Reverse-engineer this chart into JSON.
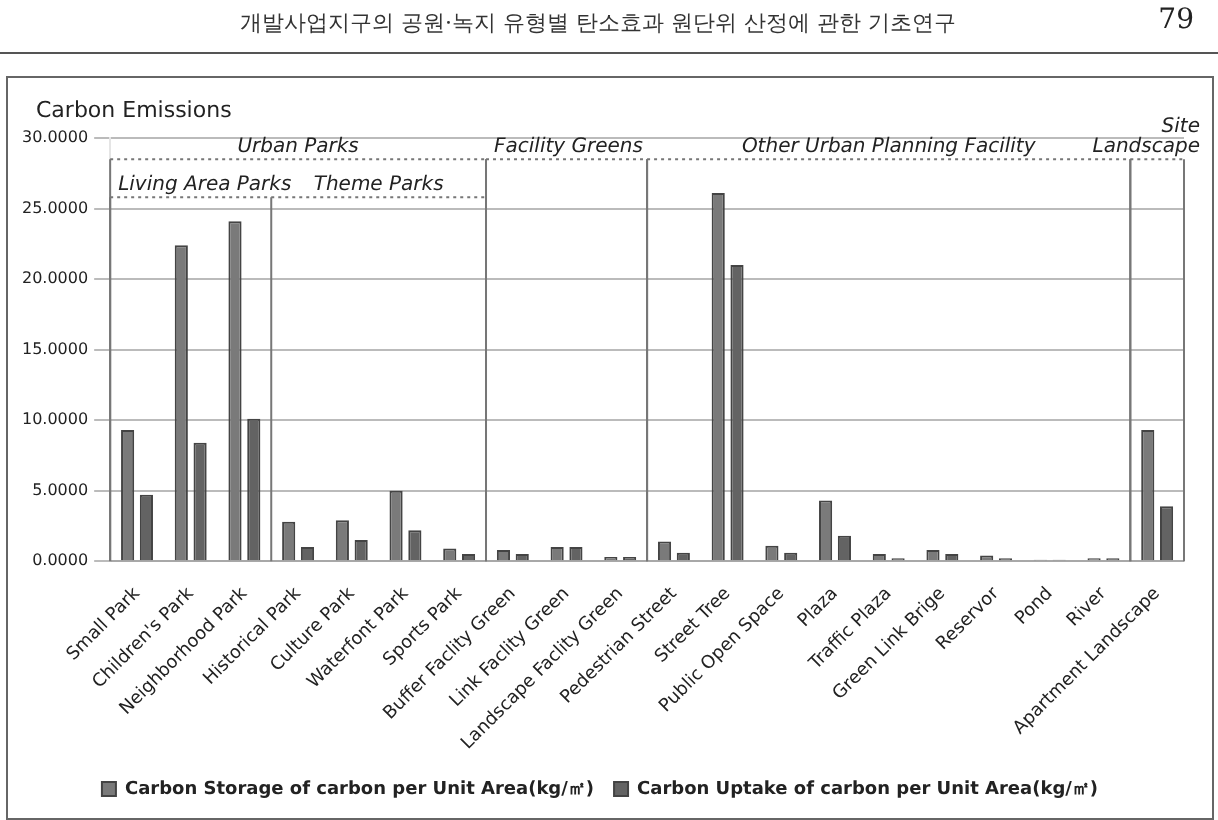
{
  "chart_data": {
    "type": "bar",
    "title": "개발사업지구의 공원·녹지 유형별 탄소효과 원단위 산정에 관한 기초연구",
    "ylabel": "Carbon Emissions",
    "annotations": [
      "79",
      "Urban Parks",
      "Living Area Parks",
      "Theme Parks",
      "Facility Greens",
      "Other Urban Planning Facility",
      "Site Landscape"
    ],
    "categories": [
      "Small Park",
      "Children's Park",
      "Neighborhood Park",
      "Historical Park",
      "Culture Park",
      "Waterfont Park",
      "Sports Park",
      "Buffer Faclity Green",
      "Link Faclity Green",
      "Landscape Faclity Green",
      "Pedestrian Street",
      "Street Tree",
      "Public Open Space",
      "Plaza",
      "Traffic Plaza",
      "Green Link Brige",
      "Reservor",
      "Pond",
      "River",
      "Apartment Landscape"
    ],
    "series": [
      {
        "name": "Carbon Storage of carbon per Unit Area(kg/㎡)",
        "color": "#7a7a7a",
        "values": [
          9.3,
          22.4,
          24.1,
          2.8,
          2.9,
          5.0,
          0.9,
          0.8,
          1.0,
          0.3,
          1.4,
          26.1,
          1.1,
          4.3,
          0.5,
          0.8,
          0.4,
          0.1,
          0.2,
          9.3
        ]
      },
      {
        "name": "Carbon Uptake of carbon per Unit Area(kg/㎡)",
        "color": "#636363",
        "values": [
          4.7,
          8.4,
          10.1,
          1.0,
          1.5,
          2.2,
          0.5,
          0.5,
          1.0,
          0.3,
          0.6,
          21.0,
          0.6,
          1.8,
          0.2,
          0.5,
          0.2,
          0.1,
          0.2,
          3.9
        ]
      }
    ],
    "ylim": [
      0,
      30
    ],
    "yticks": [
      {
        "value": 0,
        "label": "0.0000"
      },
      {
        "value": 5,
        "label": "5.0000"
      },
      {
        "value": 10,
        "label": "10.0000"
      },
      {
        "value": 15,
        "label": "15.0000"
      },
      {
        "value": 20,
        "label": "20.0000"
      },
      {
        "value": 25,
        "label": "25.0000"
      },
      {
        "value": 30,
        "label": "30.0000"
      }
    ],
    "grid": "y",
    "legend": "bottom"
  }
}
